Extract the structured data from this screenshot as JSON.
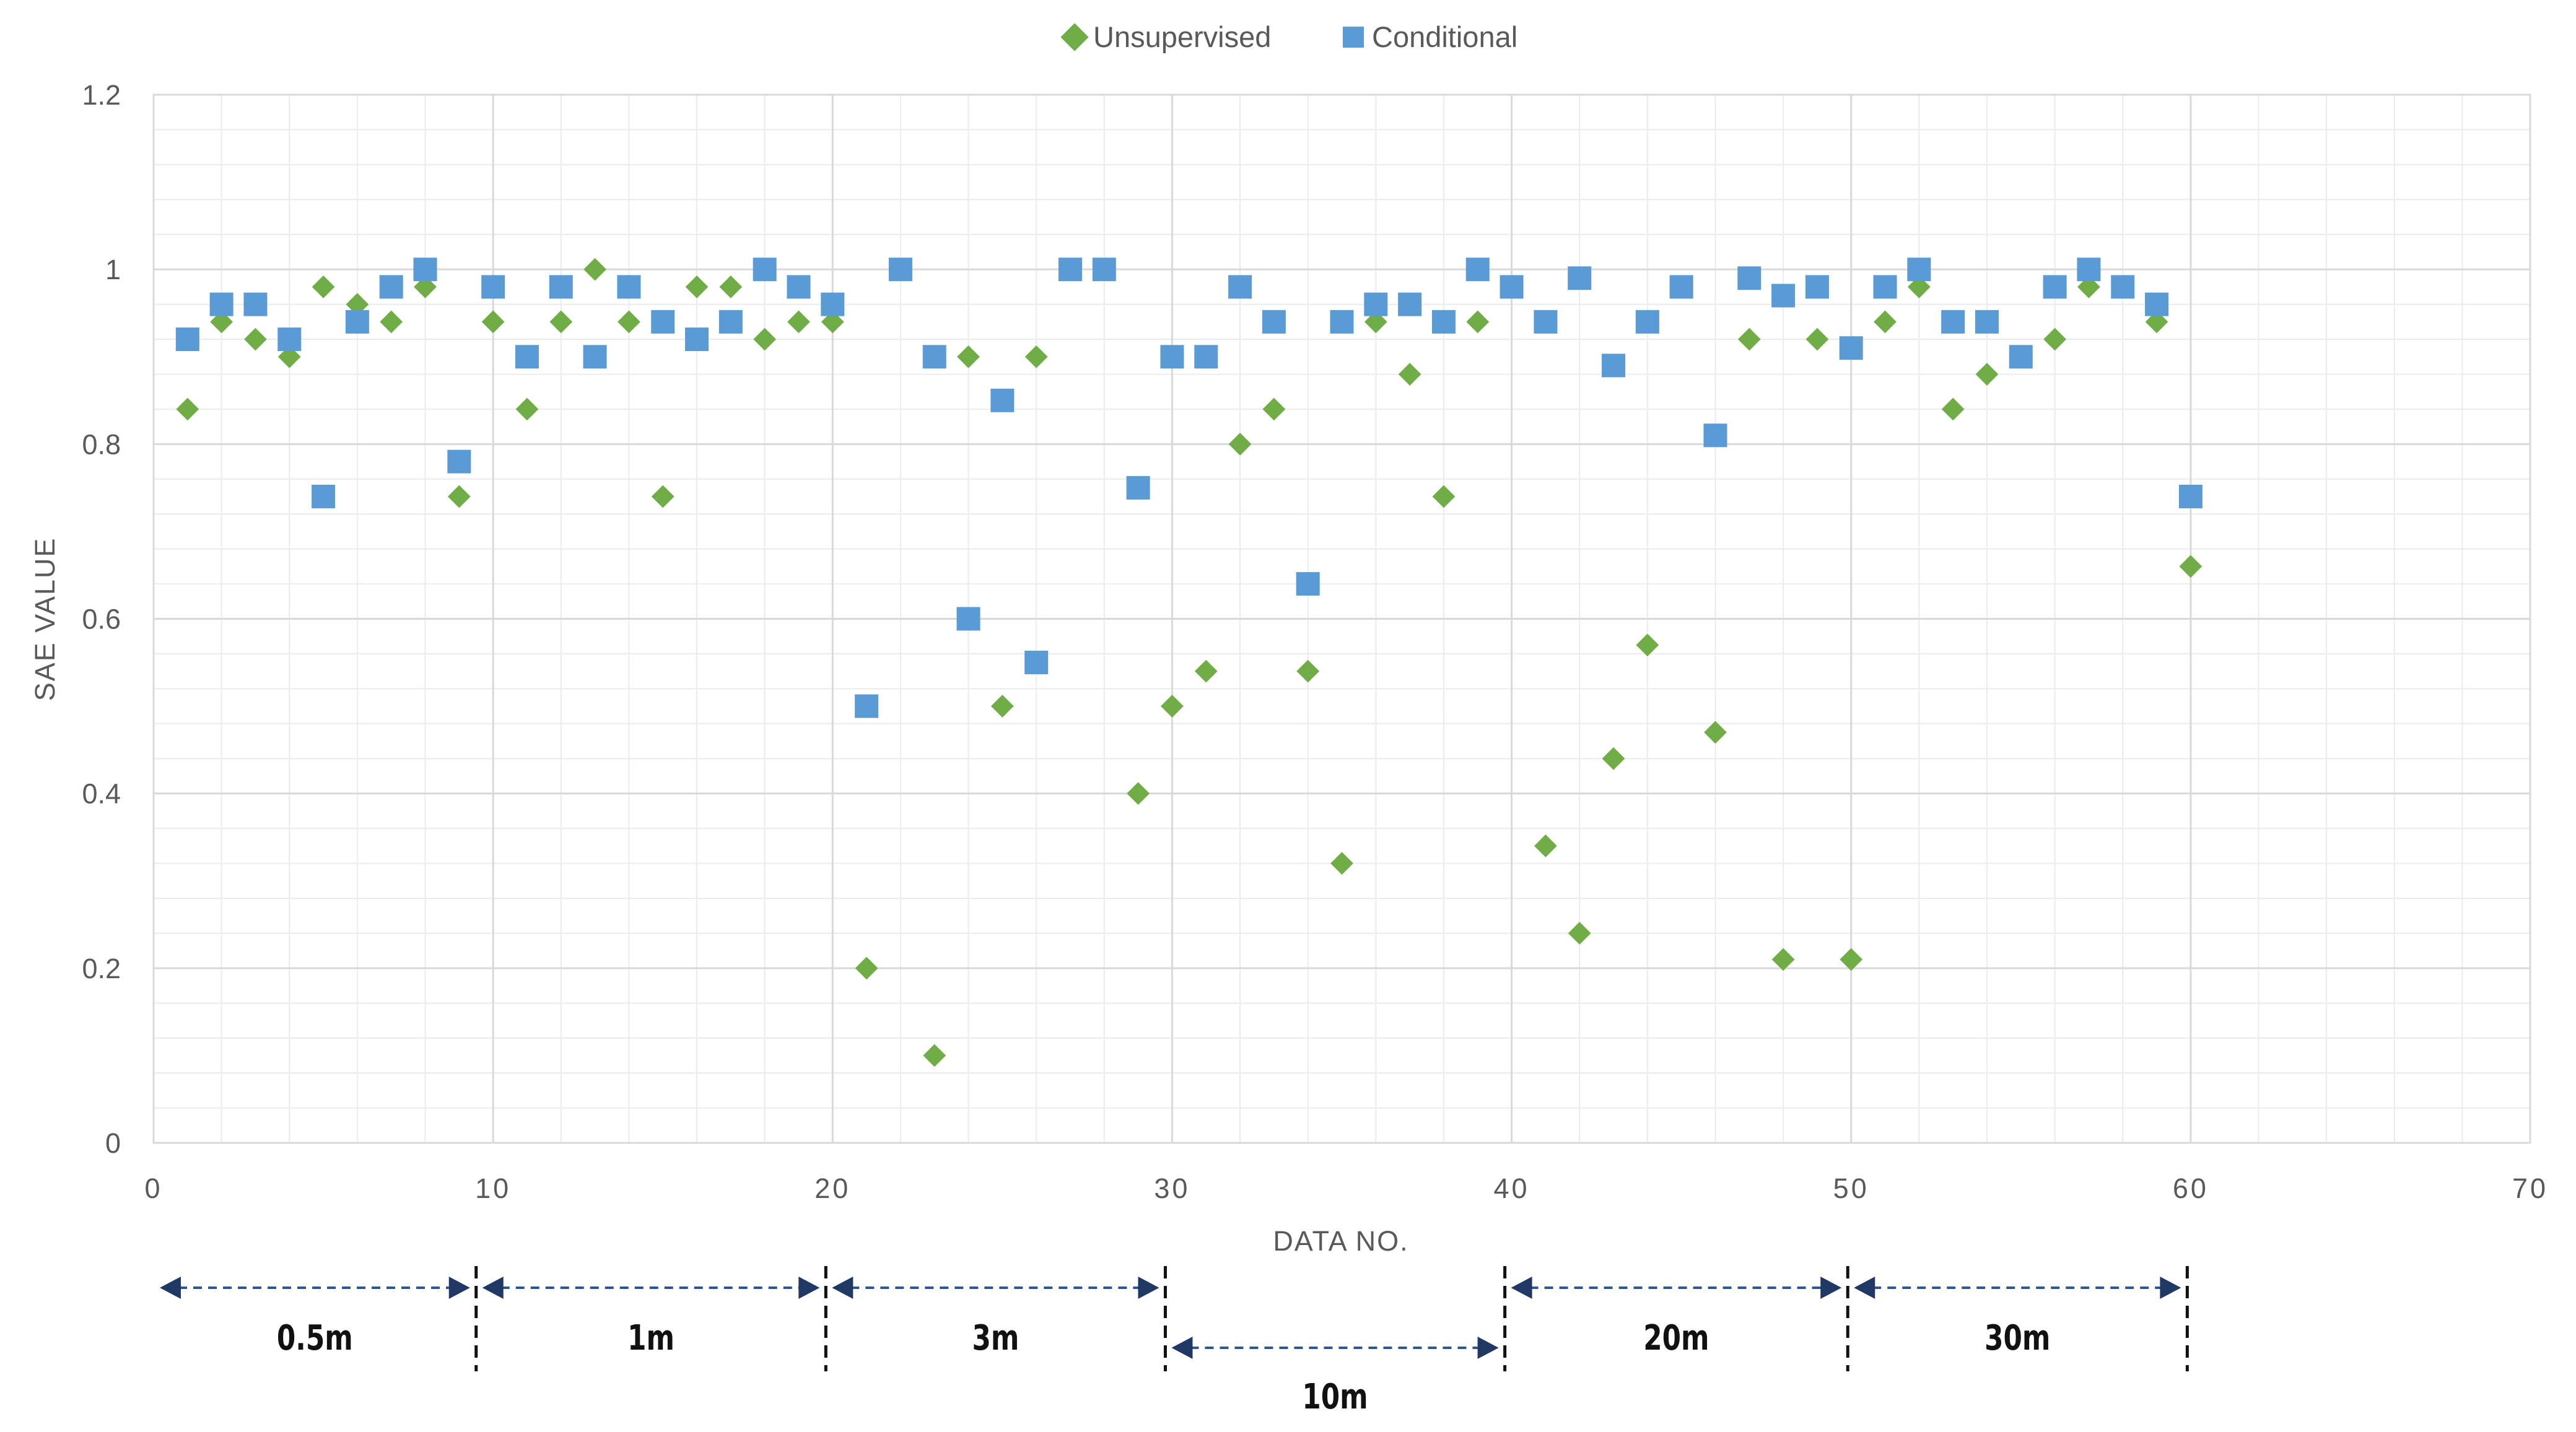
{
  "chart_data": {
    "type": "scatter",
    "xlabel": "DATA NO.",
    "ylabel": "SAE VALUE",
    "xlim": [
      0,
      70
    ],
    "ylim": [
      0,
      1.2
    ],
    "x_ticks": [
      0,
      10,
      20,
      30,
      40,
      50,
      60,
      70
    ],
    "y_ticks": [
      0,
      0.2,
      0.4,
      0.6,
      0.8,
      1,
      1.2
    ],
    "x_tick_labels": [
      "0",
      "10",
      "20",
      "30",
      "40",
      "50",
      "60",
      "70"
    ],
    "y_tick_labels": [
      "0",
      "0.2",
      "0.4",
      "0.6",
      "0.8",
      "1",
      "1.2"
    ],
    "grid": true,
    "legend_position": "top-center",
    "series": [
      {
        "name": "Unsupervised",
        "marker": "diamond",
        "color": "#70ad47",
        "x": [
          1,
          2,
          3,
          4,
          5,
          6,
          7,
          8,
          9,
          10,
          11,
          12,
          13,
          14,
          15,
          16,
          17,
          18,
          19,
          20,
          21,
          23,
          24,
          25,
          26,
          29,
          30,
          31,
          32,
          33,
          34,
          35,
          36,
          37,
          38,
          39,
          41,
          42,
          43,
          44,
          46,
          47,
          48,
          49,
          50,
          51,
          52,
          53,
          54,
          56,
          57,
          59,
          60
        ],
        "y": [
          0.84,
          0.94,
          0.92,
          0.9,
          0.98,
          0.96,
          0.94,
          0.98,
          0.74,
          0.94,
          0.84,
          0.94,
          1.0,
          0.94,
          0.74,
          0.98,
          0.98,
          0.92,
          0.94,
          0.94,
          0.2,
          0.1,
          0.9,
          0.5,
          0.9,
          0.4,
          0.5,
          0.54,
          0.8,
          0.84,
          0.54,
          0.32,
          0.94,
          0.88,
          0.74,
          0.94,
          0.34,
          0.24,
          0.44,
          0.57,
          0.47,
          0.92,
          0.21,
          0.92,
          0.21,
          0.94,
          0.98,
          0.84,
          0.88,
          0.92,
          0.98,
          0.94,
          0.66
        ]
      },
      {
        "name": "Conditional",
        "marker": "square",
        "color": "#5b9bd5",
        "x": [
          1,
          2,
          3,
          4,
          5,
          6,
          7,
          8,
          9,
          10,
          11,
          12,
          13,
          14,
          15,
          16,
          17,
          18,
          19,
          20,
          21,
          22,
          23,
          24,
          25,
          26,
          27,
          28,
          29,
          30,
          31,
          32,
          33,
          34,
          35,
          36,
          37,
          38,
          39,
          40,
          41,
          42,
          43,
          44,
          45,
          46,
          47,
          48,
          49,
          50,
          51,
          52,
          53,
          54,
          55,
          56,
          57,
          58,
          59,
          60
        ],
        "y": [
          0.92,
          0.96,
          0.96,
          0.92,
          0.74,
          0.94,
          0.98,
          1.0,
          0.78,
          0.98,
          0.9,
          0.98,
          0.9,
          0.98,
          0.94,
          0.92,
          0.94,
          1.0,
          0.98,
          0.96,
          0.5,
          1.0,
          0.9,
          0.6,
          0.85,
          0.55,
          1.0,
          1.0,
          0.75,
          0.9,
          0.9,
          0.98,
          0.94,
          0.64,
          0.94,
          0.96,
          0.96,
          0.94,
          1.0,
          0.98,
          0.94,
          0.99,
          0.89,
          0.94,
          0.98,
          0.81,
          0.99,
          0.97,
          0.98,
          0.91,
          0.98,
          1.0,
          0.94,
          0.94,
          0.9,
          0.98,
          1.0,
          0.98,
          0.96,
          0.74
        ]
      }
    ],
    "ranges": [
      {
        "label": "0.5m",
        "from": 0,
        "to": 9.5,
        "row": 1
      },
      {
        "label": "1m",
        "from": 9.5,
        "to": 19.8,
        "row": 1
      },
      {
        "label": "3m",
        "from": 19.8,
        "to": 29.8,
        "row": 1
      },
      {
        "label": "10m",
        "from": 29.8,
        "to": 39.8,
        "row": 2
      },
      {
        "label": "20m",
        "from": 39.8,
        "to": 49.9,
        "row": 1
      },
      {
        "label": "30m",
        "from": 49.9,
        "to": 59.9,
        "row": 1
      }
    ]
  }
}
